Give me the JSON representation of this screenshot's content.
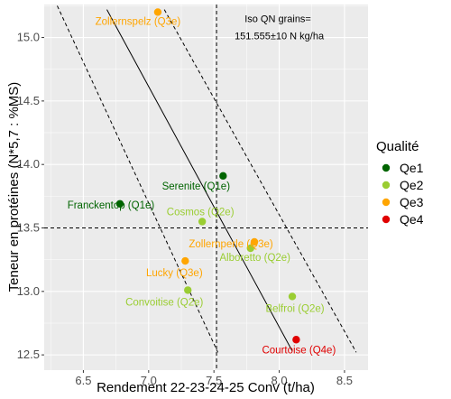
{
  "chart_data": {
    "type": "scatter",
    "xlabel": "Rendement 22-23-24-25 Conv (t/ha)",
    "ylabel": "Teneur en protéines (N*5,7 : %MS)",
    "xlim": [
      6.2,
      8.68
    ],
    "ylim": [
      12.38,
      15.26
    ],
    "xticks": [
      6.5,
      7.0,
      7.5,
      8.0,
      8.5
    ],
    "xtick_labels": [
      "6.5",
      "7.0",
      "7.5",
      "8.0",
      "8.5"
    ],
    "yticks": [
      12.5,
      13.0,
      13.5,
      14.0,
      14.5,
      15.0
    ],
    "ytick_labels": [
      "12.5",
      "13.0",
      "13.5",
      "14.0",
      "14.5",
      "15.0"
    ],
    "grid": true,
    "legend": {
      "title": "Qualité",
      "position": "right",
      "entries": [
        {
          "name": "Qe1",
          "color": "#006400"
        },
        {
          "name": "Qe2",
          "color": "#9ACD32"
        },
        {
          "name": "Qe3",
          "color": "#FFA500"
        },
        {
          "name": "Qe4",
          "color": "#E00000"
        }
      ]
    },
    "annotation": {
      "lines": [
        "Iso QN grains=",
        "151.555±10 N kg/ha"
      ],
      "x": 8.0,
      "y": 15.12
    },
    "reference_lines": {
      "vertical_x": 7.52,
      "horizontal_y": 13.5
    },
    "iso_curves": [
      {
        "style": "dashed",
        "from": [
          6.3,
          15.25
        ],
        "to": [
          7.53,
          12.52
        ]
      },
      {
        "style": "solid",
        "from": [
          6.68,
          15.22
        ],
        "to": [
          8.1,
          12.53
        ]
      },
      {
        "style": "dashed",
        "from": [
          7.12,
          15.22
        ],
        "to": [
          8.59,
          12.52
        ]
      }
    ],
    "points": [
      {
        "label": "Zollernspelz (Q3e)",
        "quality": "Qe3",
        "x": 7.07,
        "y": 15.2
      },
      {
        "label": "Serenite (Q1e)",
        "quality": "Qe1",
        "x": 7.57,
        "y": 13.91
      },
      {
        "label": "Franckentop (Q1e)",
        "quality": "Qe1",
        "x": 6.78,
        "y": 13.69
      },
      {
        "label": "Cosmos (Q2e)",
        "quality": "Qe2",
        "x": 7.41,
        "y": 13.55
      },
      {
        "label": "Zollernperle (Q3e)",
        "quality": "Qe3",
        "x": 7.81,
        "y": 13.39
      },
      {
        "label": "Alboretto (Q2e)",
        "quality": "Qe2",
        "x": 7.78,
        "y": 13.34
      },
      {
        "label": "Lucky (Q3e)",
        "quality": "Qe3",
        "x": 7.28,
        "y": 13.24
      },
      {
        "label": "Convoitise (Q2e)",
        "quality": "Qe2",
        "x": 7.3,
        "y": 13.01
      },
      {
        "label": "Belfroi (Q2e)",
        "quality": "Qe2",
        "x": 8.1,
        "y": 12.96
      },
      {
        "label": "Courtoise (Q4e)",
        "quality": "Qe4",
        "x": 8.13,
        "y": 12.62
      }
    ]
  }
}
